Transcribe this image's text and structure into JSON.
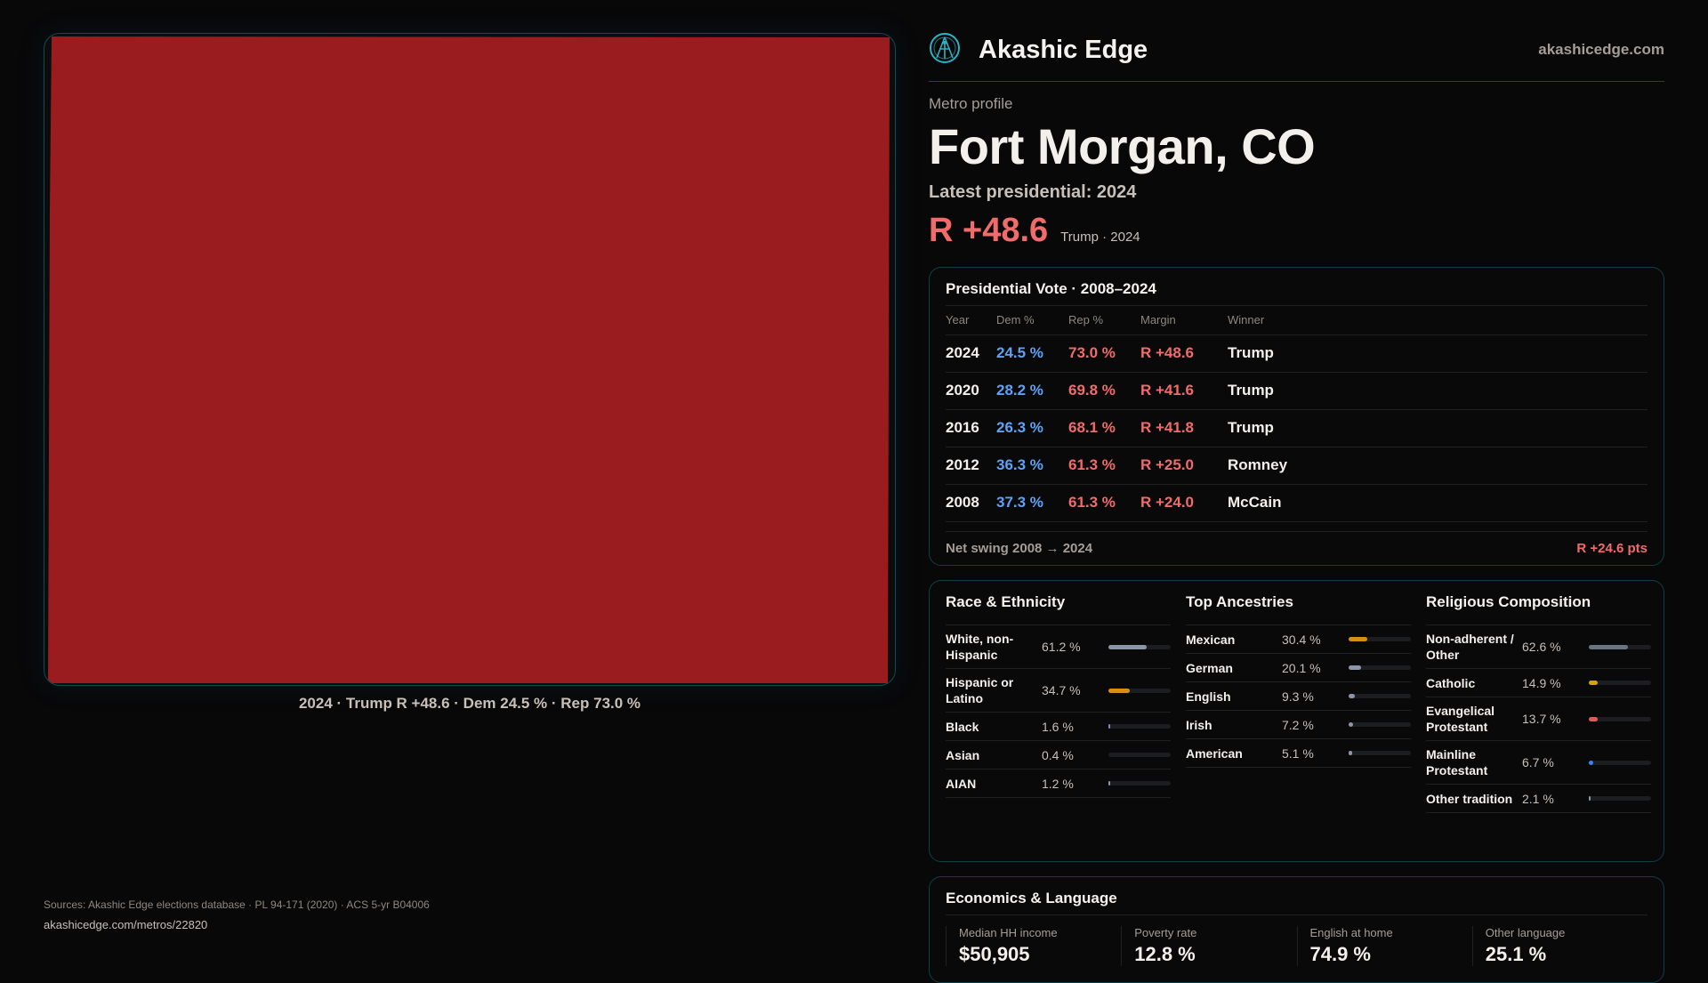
{
  "map": {
    "fill_color": "#9b1c1f",
    "caption": "2024 · Trump R +48.6 · Dem 24.5 % · Rep 73.0 %"
  },
  "header": {
    "brand": "Akashic Edge",
    "site": "akashicedge.com",
    "logo_icon": "akashic-logo-icon"
  },
  "profile": {
    "eyebrow": "Metro profile",
    "title": "Fort Morgan, CO",
    "latest": "Latest presidential: 2024",
    "margin": "R +48.6",
    "margin_sub": "Trump · 2024"
  },
  "presidential": {
    "title": "Presidential Vote · 2008–2024",
    "columns": [
      "Year",
      "Dem %",
      "Rep %",
      "Margin",
      "Winner"
    ],
    "rows": [
      [
        "2024",
        "24.5 %",
        "73.0 %",
        "R +48.6",
        "Trump"
      ],
      [
        "2020",
        "28.2 %",
        "69.8 %",
        "R +41.6",
        "Trump"
      ],
      [
        "2016",
        "26.3 %",
        "68.1 %",
        "R +41.8",
        "Trump"
      ],
      [
        "2012",
        "36.3 %",
        "61.3 %",
        "R +25.0",
        "Romney"
      ],
      [
        "2008",
        "37.3 %",
        "61.3 %",
        "R +24.0",
        "McCain"
      ]
    ],
    "swing_label": "Net swing 2008 → 2024",
    "swing_value": "R +24.6 pts"
  },
  "demographics": [
    {
      "title": "Race & Ethnicity",
      "items": [
        {
          "label": "White, non-Hispanic",
          "value": "61.2 %",
          "pct": 61.2,
          "color": "#8a96a8"
        },
        {
          "label": "Hispanic or Latino",
          "value": "34.7 %",
          "pct": 34.7,
          "color": "#d4900f"
        },
        {
          "label": "Black",
          "value": "1.6 %",
          "pct": 1.6,
          "color": "#8b7fd6"
        },
        {
          "label": "Asian",
          "value": "0.4 %",
          "pct": 0.4,
          "color": "#8a96a8"
        },
        {
          "label": "AIAN",
          "value": "1.2 %",
          "pct": 1.2,
          "color": "#8a96a8"
        }
      ]
    },
    {
      "title": "Top Ancestries",
      "items": [
        {
          "label": "Mexican",
          "value": "30.4 %",
          "pct": 30.4,
          "color": "#d4900f"
        },
        {
          "label": "German",
          "value": "20.1 %",
          "pct": 20.1,
          "color": "#8a96a8"
        },
        {
          "label": "English",
          "value": "9.3 %",
          "pct": 9.3,
          "color": "#8a96a8"
        },
        {
          "label": "Irish",
          "value": "7.2 %",
          "pct": 7.2,
          "color": "#8a96a8"
        },
        {
          "label": "American",
          "value": "5.1 %",
          "pct": 5.1,
          "color": "#8a96a8"
        }
      ]
    },
    {
      "title": "Religious Composition",
      "items": [
        {
          "label": "Non-adherent / Other",
          "value": "62.6 %",
          "pct": 62.6,
          "color": "#6b7280"
        },
        {
          "label": "Catholic",
          "value": "14.9 %",
          "pct": 14.9,
          "color": "#d4a017"
        },
        {
          "label": "Evangelical Protestant",
          "value": "13.7 %",
          "pct": 13.7,
          "color": "#e05a5a"
        },
        {
          "label": "Mainline Protestant",
          "value": "6.7 %",
          "pct": 6.7,
          "color": "#3b82f6"
        },
        {
          "label": "Other tradition",
          "value": "2.1 %",
          "pct": 2.1,
          "color": "#8a96a8"
        }
      ]
    }
  ],
  "economics": {
    "title": "Economics & Language",
    "stats": [
      {
        "label": "Median HH income",
        "value": "$50,905"
      },
      {
        "label": "Poverty rate",
        "value": "12.8 %"
      },
      {
        "label": "English at home",
        "value": "74.9 %"
      },
      {
        "label": "Other language",
        "value": "25.1 %"
      }
    ]
  },
  "footer": {
    "sources": "Sources: Akashic Edge elections database · PL 94-171 (2020) · ACS 5-yr B04006",
    "url": "akashicedge.com/metros/22820"
  }
}
